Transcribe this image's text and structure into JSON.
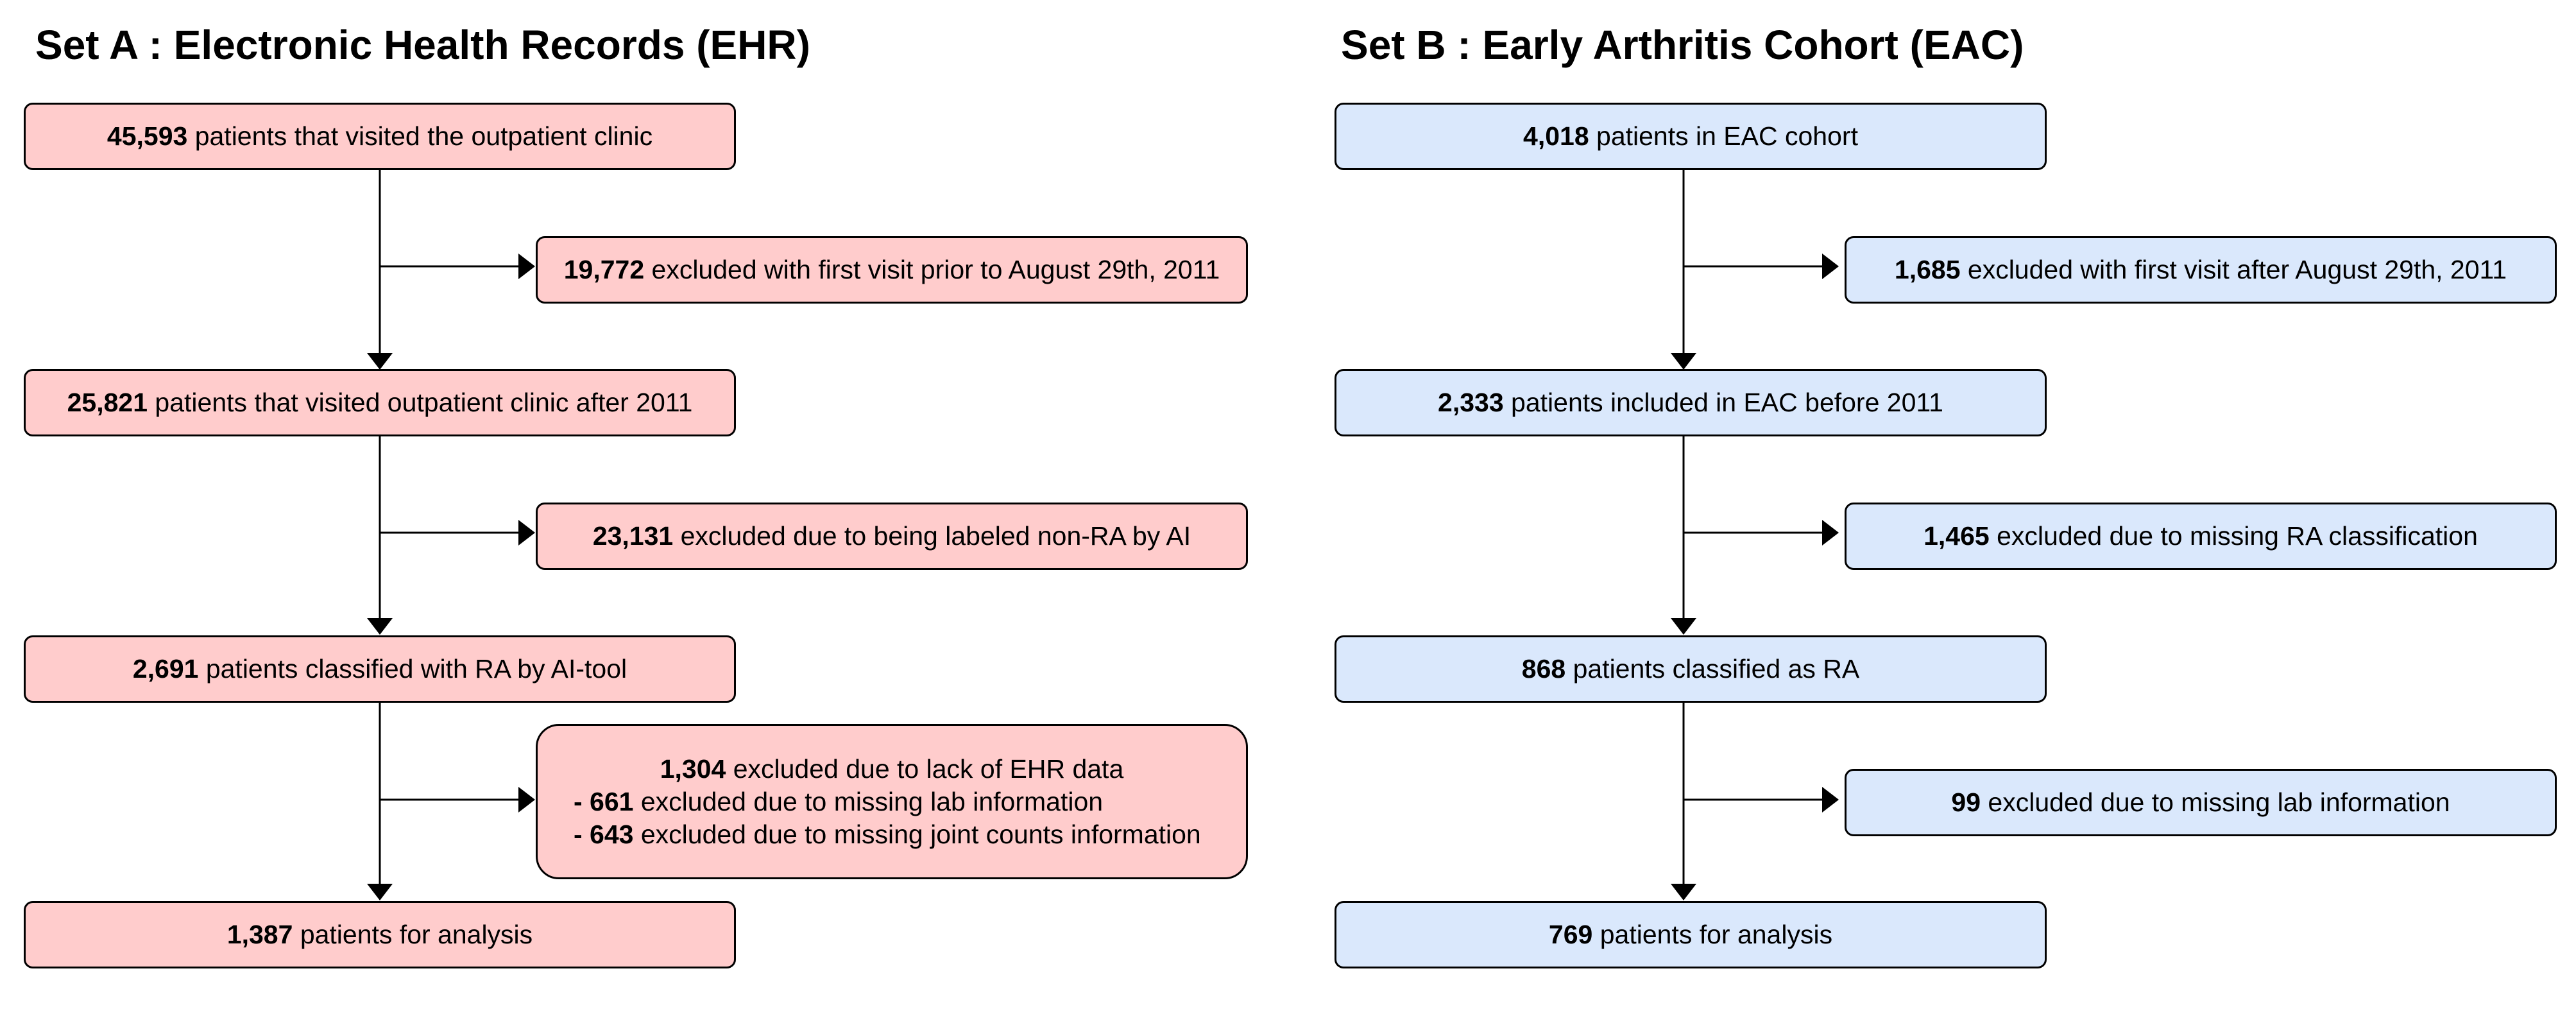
{
  "set_a": {
    "title": "Set A : Electronic Health Records (EHR)",
    "color": "#ffcccc",
    "main_boxes": [
      {
        "count": "45,593",
        "text": " patients that visited the outpatient clinic"
      },
      {
        "count": "25,821",
        "text": " patients that visited outpatient clinic after 2011"
      },
      {
        "count": "2,691",
        "text": " patients classified with RA by AI-tool"
      },
      {
        "count": "1,387",
        "text": " patients for analysis"
      }
    ],
    "exclusions": [
      {
        "count": "19,772",
        "text": " excluded with first visit prior to August 29th, 2011"
      },
      {
        "count": "23,131",
        "text": " excluded due to being labeled non-RA by AI"
      },
      {
        "count": "1,304",
        "text": " excluded due to lack of EHR data",
        "sub_items": [
          {
            "prefix": "- ",
            "count": "661",
            "text": " excluded due to missing lab information"
          },
          {
            "prefix": "- ",
            "count": "643",
            "text": " excluded due to missing joint counts information"
          }
        ]
      }
    ]
  },
  "set_b": {
    "title": "Set B : Early Arthritis Cohort (EAC)",
    "color": "#dae8fc",
    "main_boxes": [
      {
        "count": "4,018",
        "text": " patients in EAC cohort"
      },
      {
        "count": "2,333",
        "text": " patients included in EAC before 2011"
      },
      {
        "count": "868",
        "text": " patients classified as RA"
      },
      {
        "count": "769",
        "text": " patients for analysis"
      }
    ],
    "exclusions": [
      {
        "count": "1,685",
        "text": " excluded with first visit after August 29th, 2011"
      },
      {
        "count": "1,465",
        "text": " excluded due to missing RA classification"
      },
      {
        "count": "99",
        "text": " excluded due to missing lab information"
      }
    ]
  }
}
